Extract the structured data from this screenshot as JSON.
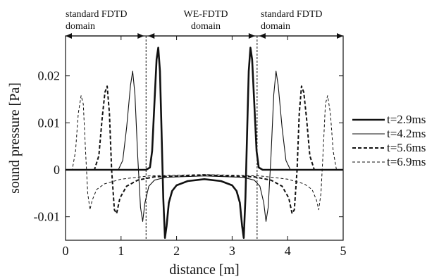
{
  "chart_data": {
    "type": "line",
    "xlabel": "distance [m]",
    "ylabel": "sound pressure [Pa]",
    "xlim": [
      0,
      5
    ],
    "ylim": [
      -0.015,
      0.0285
    ],
    "x_ticks": [
      0,
      1,
      2,
      3,
      4,
      5
    ],
    "y_ticks": [
      0.02,
      0.01,
      0,
      -0.01
    ],
    "y_tick_labels": [
      "0.02",
      "0.01",
      "0",
      "-0.01"
    ],
    "grid": false,
    "legend_position": "right",
    "regions": [
      {
        "label_line1": "standard FDTD",
        "label_line2": "domain",
        "x_start": 0,
        "x_end": 1.45
      },
      {
        "label_line1": "WE-FDTD",
        "label_line2": "domain",
        "x_start": 1.45,
        "x_end": 3.45
      },
      {
        "label_line1": "standard FDTD",
        "label_line2": "domain",
        "x_start": 3.45,
        "x_end": 5
      }
    ],
    "boundaries": [
      1.45,
      3.45
    ],
    "series": [
      {
        "name": "t=2.9ms",
        "style": "thick-solid",
        "points": [
          [
            0,
            0
          ],
          [
            1.45,
            0
          ],
          [
            1.52,
            0.0005
          ],
          [
            1.56,
            0.004
          ],
          [
            1.6,
            0.014
          ],
          [
            1.64,
            0.0235
          ],
          [
            1.67,
            0.026
          ],
          [
            1.7,
            0.021
          ],
          [
            1.73,
            0.008
          ],
          [
            1.76,
            -0.006
          ],
          [
            1.79,
            -0.0145
          ],
          [
            1.82,
            -0.012
          ],
          [
            1.86,
            -0.007
          ],
          [
            1.92,
            -0.0045
          ],
          [
            2.0,
            -0.0033
          ],
          [
            2.2,
            -0.0024
          ],
          [
            2.5,
            -0.002
          ],
          [
            2.8,
            -0.0024
          ],
          [
            3.0,
            -0.0033
          ],
          [
            3.08,
            -0.0045
          ],
          [
            3.14,
            -0.007
          ],
          [
            3.18,
            -0.012
          ],
          [
            3.21,
            -0.0145
          ],
          [
            3.24,
            -0.006
          ],
          [
            3.27,
            0.008
          ],
          [
            3.3,
            0.021
          ],
          [
            3.33,
            0.026
          ],
          [
            3.36,
            0.0235
          ],
          [
            3.4,
            0.014
          ],
          [
            3.44,
            0.004
          ],
          [
            3.48,
            0.0005
          ],
          [
            3.55,
            0
          ],
          [
            5,
            0
          ]
        ]
      },
      {
        "name": "t=4.2ms",
        "style": "thin-solid",
        "points": [
          [
            0,
            0
          ],
          [
            0.95,
            0
          ],
          [
            1.03,
            0.002
          ],
          [
            1.1,
            0.009
          ],
          [
            1.17,
            0.018
          ],
          [
            1.21,
            0.021
          ],
          [
            1.25,
            0.016
          ],
          [
            1.3,
            0.003
          ],
          [
            1.35,
            -0.008
          ],
          [
            1.39,
            -0.011
          ],
          [
            1.43,
            -0.007
          ],
          [
            1.5,
            -0.0035
          ],
          [
            1.6,
            -0.0022
          ],
          [
            1.8,
            -0.0016
          ],
          [
            2.5,
            -0.0013
          ],
          [
            3.2,
            -0.0016
          ],
          [
            3.4,
            -0.0022
          ],
          [
            3.5,
            -0.0035
          ],
          [
            3.57,
            -0.007
          ],
          [
            3.61,
            -0.011
          ],
          [
            3.65,
            -0.008
          ],
          [
            3.7,
            0.003
          ],
          [
            3.75,
            0.016
          ],
          [
            3.79,
            0.021
          ],
          [
            3.83,
            0.018
          ],
          [
            3.9,
            0.009
          ],
          [
            3.97,
            0.002
          ],
          [
            4.05,
            0
          ],
          [
            5,
            0
          ]
        ]
      },
      {
        "name": "t=5.6ms",
        "style": "thick-dashed",
        "points": [
          [
            0,
            0
          ],
          [
            0.52,
            0
          ],
          [
            0.6,
            0.003
          ],
          [
            0.66,
            0.011
          ],
          [
            0.71,
            0.0165
          ],
          [
            0.75,
            0.0178
          ],
          [
            0.79,
            0.012
          ],
          [
            0.83,
            0.0
          ],
          [
            0.88,
            -0.0085
          ],
          [
            0.92,
            -0.0093
          ],
          [
            0.98,
            -0.006
          ],
          [
            1.1,
            -0.0035
          ],
          [
            1.3,
            -0.0022
          ],
          [
            1.6,
            -0.0015
          ],
          [
            2.5,
            -0.0011
          ],
          [
            3.4,
            -0.0015
          ],
          [
            3.7,
            -0.0022
          ],
          [
            3.9,
            -0.0035
          ],
          [
            4.02,
            -0.006
          ],
          [
            4.08,
            -0.0093
          ],
          [
            4.12,
            -0.0085
          ],
          [
            4.17,
            0.0
          ],
          [
            4.21,
            0.012
          ],
          [
            4.25,
            0.0178
          ],
          [
            4.29,
            0.0165
          ],
          [
            4.34,
            0.011
          ],
          [
            4.4,
            0.003
          ],
          [
            4.48,
            0
          ],
          [
            5,
            0
          ]
        ]
      },
      {
        "name": "t=6.9ms",
        "style": "thin-dashed",
        "points": [
          [
            0,
            0
          ],
          [
            0.12,
            0
          ],
          [
            0.18,
            0.004
          ],
          [
            0.23,
            0.012
          ],
          [
            0.28,
            0.0158
          ],
          [
            0.32,
            0.014
          ],
          [
            0.36,
            0.004
          ],
          [
            0.4,
            -0.005
          ],
          [
            0.44,
            -0.0085
          ],
          [
            0.48,
            -0.0065
          ],
          [
            0.56,
            -0.0042
          ],
          [
            0.7,
            -0.003
          ],
          [
            1.0,
            -0.002
          ],
          [
            1.5,
            -0.0013
          ],
          [
            2.5,
            -0.001
          ],
          [
            3.5,
            -0.0013
          ],
          [
            4.0,
            -0.002
          ],
          [
            4.3,
            -0.003
          ],
          [
            4.44,
            -0.0042
          ],
          [
            4.52,
            -0.0065
          ],
          [
            4.56,
            -0.0085
          ],
          [
            4.6,
            -0.005
          ],
          [
            4.64,
            0.004
          ],
          [
            4.68,
            0.014
          ],
          [
            4.72,
            0.0158
          ],
          [
            4.77,
            0.012
          ],
          [
            4.82,
            0.004
          ],
          [
            4.88,
            0
          ],
          [
            5,
            0
          ]
        ]
      }
    ]
  }
}
